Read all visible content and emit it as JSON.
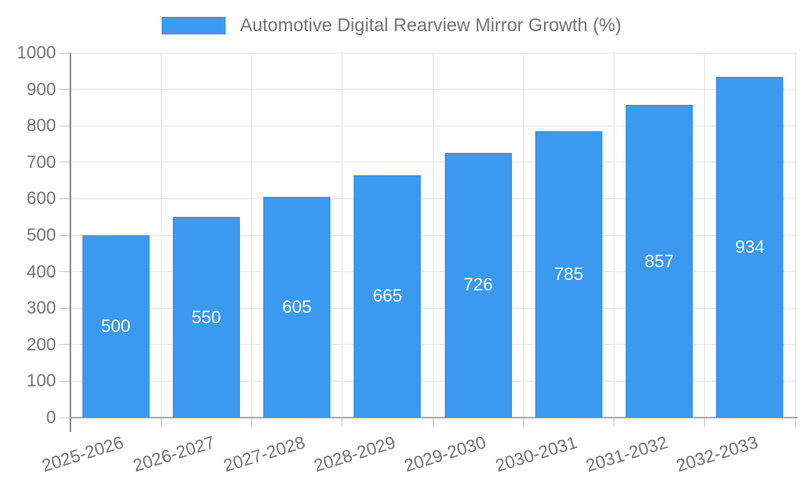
{
  "chart_data": {
    "type": "bar",
    "title": "Automotive Digital Rearview Mirror Growth (%)",
    "categories": [
      "2025-2026",
      "2026-2027",
      "2027-2028",
      "2028-2029",
      "2029-2030",
      "2030-2031",
      "2031-2032",
      "2032-2033"
    ],
    "values": [
      500,
      550,
      605,
      665,
      726,
      785,
      857,
      934
    ],
    "xlabel": "",
    "ylabel": "",
    "ylim": [
      0,
      1000
    ],
    "ytick_step": 100,
    "grid": "on",
    "legend_position": "top-center",
    "value_labels": "inside-center",
    "bar_color": "#3b99f0",
    "value_label_color": "#ffffff",
    "text_color": "#757575",
    "grid_color": "#e4e4e4",
    "y_axis_line_color": "#8c8c8c",
    "x_axis_line_color": "#ababab",
    "tick_color": "#c9c9c9",
    "background_color": "#ffffff"
  }
}
